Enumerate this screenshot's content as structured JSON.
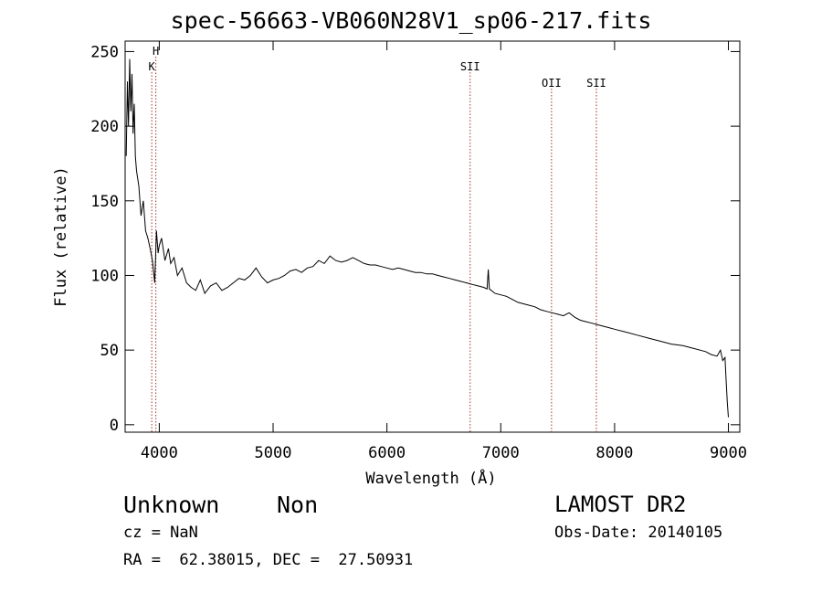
{
  "chart_data": {
    "type": "line",
    "title": "spec-56663-VB060N28V1_sp06-217.fits",
    "xlabel": "Wavelength (Å)",
    "ylabel": "Flux (relative)",
    "xlim": [
      3700,
      9100
    ],
    "ylim": [
      -5,
      257
    ],
    "xticks": [
      4000,
      5000,
      6000,
      7000,
      8000,
      9000
    ],
    "yticks": [
      0,
      50,
      100,
      150,
      200,
      250
    ],
    "grid": false,
    "line_color": "#000000",
    "marker_color": "#a0322d",
    "series": [
      {
        "x": [
          3710,
          3720,
          3730,
          3740,
          3750,
          3760,
          3770,
          3780,
          3790,
          3800,
          3820,
          3840,
          3860,
          3880,
          3900,
          3920,
          3940,
          3960,
          3975,
          3990,
          4000,
          4020,
          4050,
          4080,
          4100,
          4130,
          4160,
          4200,
          4240,
          4280,
          4320,
          4360,
          4400,
          4450,
          4500,
          4550,
          4600,
          4650,
          4700,
          4750,
          4800,
          4850,
          4900,
          4950,
          5000,
          5050,
          5100,
          5150,
          5200,
          5250,
          5300,
          5350,
          5400,
          5450,
          5500,
          5550,
          5600,
          5650,
          5700,
          5750,
          5800,
          5850,
          5900,
          5950,
          6000,
          6050,
          6100,
          6150,
          6200,
          6250,
          6300,
          6350,
          6400,
          6450,
          6500,
          6550,
          6600,
          6650,
          6700,
          6750,
          6800,
          6850,
          6880,
          6890,
          6900,
          6950,
          7000,
          7050,
          7100,
          7150,
          7200,
          7250,
          7300,
          7350,
          7400,
          7450,
          7500,
          7550,
          7600,
          7650,
          7700,
          7750,
          7800,
          7850,
          7900,
          7950,
          8000,
          8100,
          8200,
          8300,
          8400,
          8500,
          8600,
          8700,
          8800,
          8850,
          8900,
          8930,
          8950,
          8970,
          8980,
          8990,
          9000
        ],
        "values": [
          180,
          230,
          200,
          245,
          210,
          235,
          195,
          215,
          180,
          170,
          160,
          140,
          150,
          130,
          125,
          118,
          110,
          95,
          130,
          115,
          120,
          125,
          110,
          118,
          108,
          112,
          100,
          105,
          95,
          92,
          90,
          97,
          88,
          93,
          95,
          90,
          92,
          95,
          98,
          97,
          100,
          105,
          99,
          95,
          97,
          98,
          100,
          103,
          104,
          102,
          105,
          106,
          110,
          108,
          113,
          110,
          109,
          110,
          112,
          110,
          108,
          107,
          107,
          106,
          105,
          104,
          105,
          104,
          103,
          102,
          102,
          101,
          101,
          100,
          99,
          98,
          97,
          96,
          95,
          94,
          93,
          92,
          91,
          104,
          91,
          88,
          87,
          86,
          84,
          82,
          81,
          80,
          79,
          77,
          76,
          75,
          74,
          73,
          75,
          72,
          70,
          69,
          68,
          67,
          66,
          65,
          64,
          62,
          60,
          58,
          56,
          54,
          53,
          51,
          49,
          47,
          46,
          50,
          43,
          45,
          30,
          15,
          5
        ]
      }
    ],
    "line_markers": [
      {
        "label": "H",
        "x": 3970,
        "row": 0
      },
      {
        "label": "K",
        "x": 3934,
        "row": 1
      },
      {
        "label": "SII",
        "x": 6731,
        "row": 1
      },
      {
        "label": "OII",
        "x": 7446,
        "row": 2
      },
      {
        "label": "SII",
        "x": 7840,
        "row": 2
      }
    ]
  },
  "info": {
    "object_class": "Unknown",
    "object_subclass": "Non",
    "cz": "cz = NaN",
    "radec": "RA =  62.38015, DEC =  27.50931",
    "survey": "LAMOST DR2",
    "obs_date": "Obs-Date: 20140105"
  }
}
